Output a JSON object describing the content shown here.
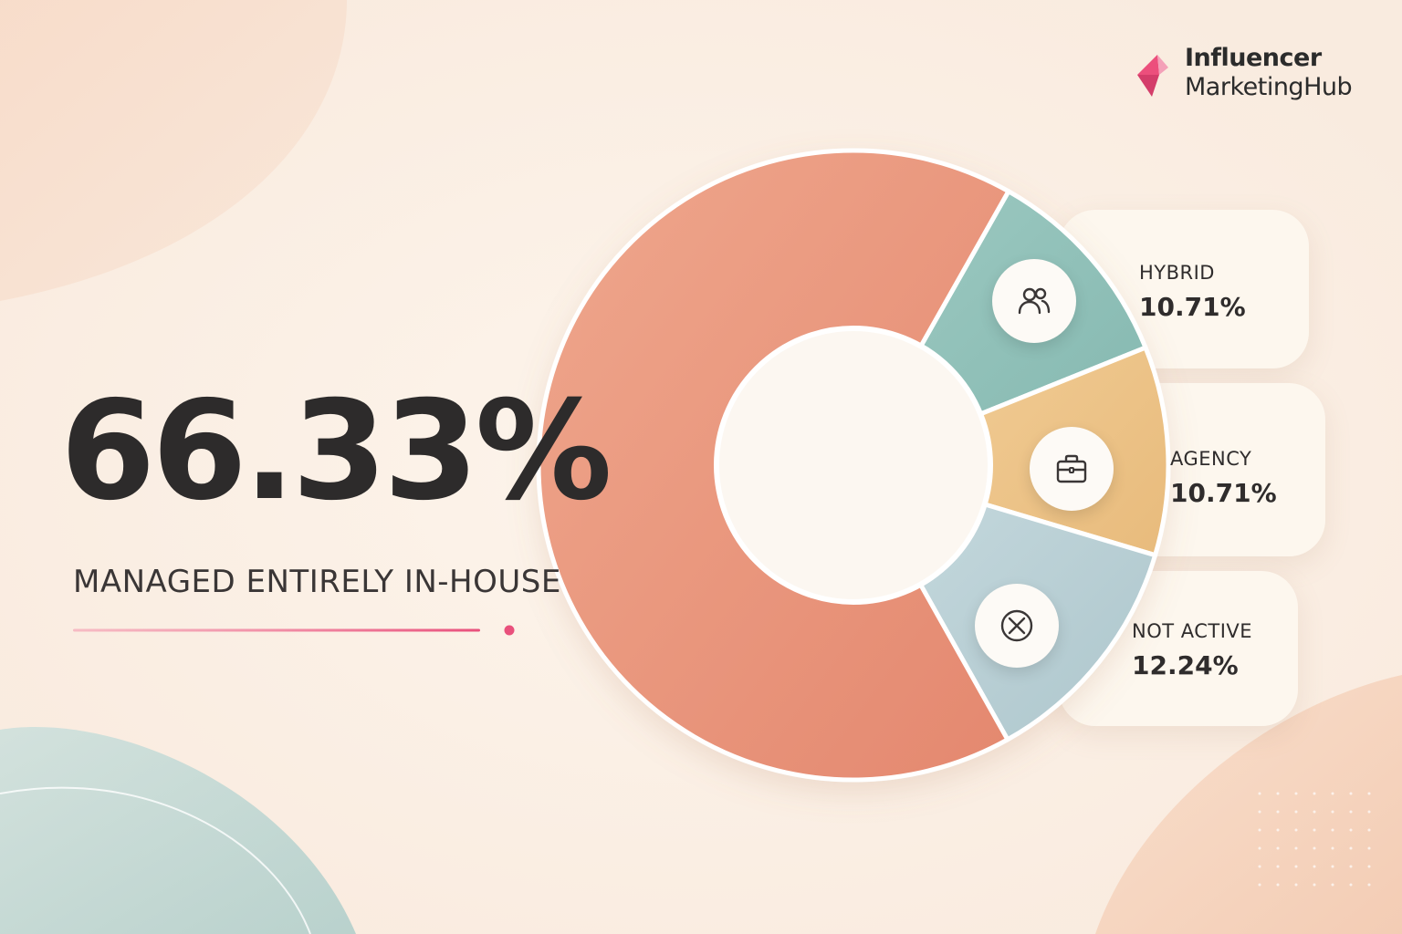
{
  "brand": {
    "line1": "Influencer",
    "line2": "MarketingHub",
    "accent_color": "#ec4f7c"
  },
  "headline": {
    "value": "66.33%",
    "label": "MANAGED ENTIRELY IN-HOUSE"
  },
  "chart_data": {
    "type": "pie",
    "donut": true,
    "title": "",
    "categories": [
      "MANAGED ENTIRELY IN-HOUSE",
      "HYBRID",
      "AGENCY",
      "NOT ACTIVE"
    ],
    "values": [
      66.33,
      10.71,
      10.71,
      12.24
    ],
    "value_labels": [
      "66.33%",
      "10.71%",
      "10.71%",
      "12.24%"
    ],
    "colors": [
      "#e8917a",
      "#8dbfb7",
      "#ebc285",
      "#b9ced4"
    ],
    "icons": [
      "",
      "users-icon",
      "briefcase-icon",
      "circle-x-icon"
    ],
    "legend": "cards-right"
  }
}
